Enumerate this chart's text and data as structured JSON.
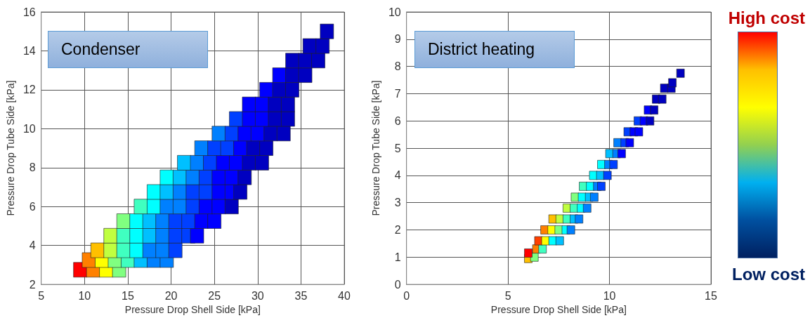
{
  "chart_data": [
    {
      "type": "scatter",
      "xlabel": "Pressure Drop Shell Side [kPa]",
      "ylabel": "Pressure Drop Tube Side [kPa]",
      "annotations": [
        "Condenser"
      ],
      "xlim": [
        5,
        40
      ],
      "ylim": [
        2,
        16
      ],
      "xticks": [
        5,
        10,
        15,
        20,
        25,
        30,
        35,
        40
      ],
      "yticks": [
        2,
        4,
        6,
        8,
        10,
        12,
        14,
        16
      ],
      "grid": true,
      "marker": "square",
      "x": [
        9.5,
        11,
        12.5,
        14,
        10.5,
        12,
        13.5,
        15,
        16.5,
        18,
        19.5,
        11.5,
        13,
        14.5,
        16,
        17.5,
        19,
        20.5,
        13,
        14.5,
        16,
        17.5,
        19,
        20.5,
        22,
        23,
        14.5,
        16,
        17.5,
        19,
        20.5,
        22,
        23.5,
        25,
        16.5,
        18,
        19.5,
        21,
        22.5,
        24,
        25.5,
        27,
        18,
        19.5,
        21,
        22.5,
        24,
        25.5,
        27,
        28,
        19.5,
        21,
        22.5,
        24,
        25.5,
        27,
        28.5,
        21.5,
        23,
        24.5,
        26,
        27.5,
        29,
        30.5,
        23.5,
        25,
        26.5,
        28,
        29.5,
        31,
        25.5,
        27,
        28.5,
        30,
        31.5,
        33,
        27.5,
        29,
        30.5,
        32,
        33.5,
        29,
        30.5,
        32,
        33.5,
        31,
        32.5,
        34,
        32.5,
        34,
        35.5,
        34,
        35.5,
        37,
        36,
        37.5,
        38
      ],
      "values": [
        2.75,
        2.75,
        2.75,
        2.75,
        3.25,
        3.25,
        3.25,
        3.25,
        3.25,
        3.25,
        3.25,
        3.75,
        3.75,
        3.75,
        3.75,
        3.75,
        3.75,
        3.75,
        4.5,
        4.5,
        4.5,
        4.5,
        4.5,
        4.5,
        4.5,
        4.5,
        5.25,
        5.25,
        5.25,
        5.25,
        5.25,
        5.25,
        5.25,
        5.25,
        6,
        6,
        6,
        6,
        6,
        6,
        6,
        6,
        6.75,
        6.75,
        6.75,
        6.75,
        6.75,
        6.75,
        6.75,
        6.75,
        7.5,
        7.5,
        7.5,
        7.5,
        7.5,
        7.5,
        7.5,
        8.25,
        8.25,
        8.25,
        8.25,
        8.25,
        8.25,
        8.25,
        9,
        9,
        9,
        9,
        9,
        9,
        9.75,
        9.75,
        9.75,
        9.75,
        9.75,
        9.75,
        10.5,
        10.5,
        10.5,
        10.5,
        10.5,
        11.25,
        11.25,
        11.25,
        11.25,
        12,
        12,
        12,
        12.75,
        12.75,
        12.75,
        13.5,
        13.5,
        13.5,
        14.25,
        14.25,
        15
      ],
      "colors": [
        "#ff0000",
        "#ff8000",
        "#ffff00",
        "#80ff80",
        "#ff8000",
        "#ffff00",
        "#80ff80",
        "#40ffc0",
        "#00c0ff",
        "#0080ff",
        "#0080ff",
        "#ffc000",
        "#c0ff40",
        "#40ffc0",
        "#00ffff",
        "#0080ff",
        "#0080ff",
        "#0040ff",
        "#c0ff40",
        "#40ffc0",
        "#00ffff",
        "#00c0ff",
        "#0080ff",
        "#0040ff",
        "#0040ff",
        "#0000ff",
        "#80ff80",
        "#00ffff",
        "#00c0ff",
        "#0080ff",
        "#0040ff",
        "#0040ff",
        "#0000ff",
        "#0000ff",
        "#40ffc0",
        "#00ffff",
        "#0080ff",
        "#0080ff",
        "#0040ff",
        "#0000ff",
        "#0000ff",
        "#0000c0",
        "#00ffff",
        "#00c0ff",
        "#0080ff",
        "#0040ff",
        "#0040ff",
        "#0000ff",
        "#0000ff",
        "#0000c0",
        "#00ffff",
        "#00c0ff",
        "#0080ff",
        "#0040ff",
        "#0000ff",
        "#0000ff",
        "#0000c0",
        "#00c0ff",
        "#0080ff",
        "#0040ff",
        "#0000ff",
        "#0000ff",
        "#0000c0",
        "#0000c0",
        "#0080ff",
        "#0040ff",
        "#0040ff",
        "#0000ff",
        "#0000c0",
        "#0000c0",
        "#0080ff",
        "#0040ff",
        "#0000ff",
        "#0000ff",
        "#0000c0",
        "#0000c0",
        "#0040ff",
        "#0000ff",
        "#0000ff",
        "#0000c0",
        "#0000c0",
        "#0000ff",
        "#0000ff",
        "#0000c0",
        "#0000c0",
        "#0000ff",
        "#0000c0",
        "#0000c0",
        "#0000ff",
        "#0000c0",
        "#0000c0",
        "#0000c0",
        "#0000c0",
        "#0000c0",
        "#0000c0",
        "#0000c0",
        "#0000c0"
      ]
    },
    {
      "type": "scatter",
      "xlabel": "Pressure Drop Shell Side [kPa]",
      "ylabel": "Pressure Drop Tube Side [kPa]",
      "annotations": [
        "District heating",
        "High cost",
        "Low cost"
      ],
      "xlim": [
        0,
        15
      ],
      "ylim": [
        0,
        10
      ],
      "xticks": [
        0,
        5,
        10,
        15
      ],
      "yticks": [
        0,
        1,
        2,
        3,
        4,
        5,
        6,
        7,
        8,
        9,
        10
      ],
      "grid": true,
      "marker": "square",
      "x": [
        6,
        6.3,
        6,
        6.4,
        6.7,
        6.5,
        6.85,
        7.2,
        7.55,
        6.8,
        7.15,
        7.5,
        7.85,
        8.1,
        7.2,
        7.55,
        7.9,
        8.25,
        8.5,
        7.9,
        8.25,
        8.6,
        8.9,
        8.3,
        8.65,
        9,
        9.25,
        8.7,
        9.05,
        9.4,
        9.6,
        9.2,
        9.55,
        9.9,
        9.6,
        9.95,
        10.2,
        10,
        10.35,
        10.6,
        10.4,
        10.75,
        11,
        10.9,
        11.2,
        11.45,
        11.4,
        11.7,
        12,
        11.9,
        12.2,
        12.3,
        12.6,
        12.7,
        13.05,
        13.1,
        13.5
      ],
      "values": [
        0.95,
        1,
        1.15,
        1.3,
        1.3,
        1.6,
        1.6,
        1.6,
        1.6,
        2,
        2,
        2,
        2,
        2,
        2.4,
        2.4,
        2.4,
        2.4,
        2.4,
        2.8,
        2.8,
        2.8,
        2.8,
        3.2,
        3.2,
        3.2,
        3.2,
        3.6,
        3.6,
        3.6,
        3.6,
        4,
        4,
        4,
        4.4,
        4.4,
        4.4,
        4.8,
        4.8,
        4.8,
        5.2,
        5.2,
        5.2,
        5.6,
        5.6,
        5.6,
        6,
        6,
        6,
        6.4,
        6.4,
        6.8,
        6.8,
        7.2,
        7.2,
        7.4,
        7.75
      ],
      "colors": [
        "#ffc000",
        "#80ff80",
        "#ff0000",
        "#ff8000",
        "#40ffc0",
        "#ff4000",
        "#ffff00",
        "#00ffff",
        "#00c0ff",
        "#ff8000",
        "#ffff00",
        "#80ff80",
        "#00ffff",
        "#0080ff",
        "#ffc000",
        "#c0ff40",
        "#40ffc0",
        "#00c0ff",
        "#0080ff",
        "#c0ff40",
        "#40ffc0",
        "#00ffff",
        "#0080ff",
        "#80ff80",
        "#00ffff",
        "#00c0ff",
        "#0080ff",
        "#40ffc0",
        "#00ffff",
        "#0080ff",
        "#0040ff",
        "#00ffff",
        "#00c0ff",
        "#0040ff",
        "#00ffff",
        "#0080ff",
        "#0040ff",
        "#00c0ff",
        "#0080ff",
        "#0000ff",
        "#0080ff",
        "#0040ff",
        "#0000ff",
        "#0040ff",
        "#0000ff",
        "#0000ff",
        "#0040ff",
        "#0000ff",
        "#0000c0",
        "#0000ff",
        "#0000c0",
        "#0000c0",
        "#0000c0",
        "#0000c0",
        "#0000c0",
        "#0000c0",
        "#0000c0"
      ]
    }
  ]
}
